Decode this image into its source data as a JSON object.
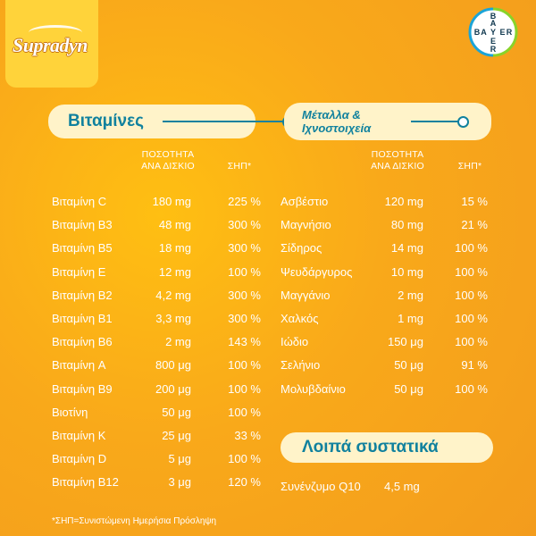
{
  "brand": {
    "name": "Supradyn"
  },
  "bayer": {
    "letters_vertical": "BAYER",
    "letters_horizontal": "BAYER"
  },
  "vitamins": {
    "title": "Βιταμίνες",
    "header_amount_line1": "ΠΟΣΟΤΗΤΑ",
    "header_amount_line2": "ΑΝΑ ΔΙΣΚΙΟ",
    "header_pct": "ΣΗΠ*",
    "items": [
      {
        "name": "Βιταμίνη C",
        "amount": "180 mg",
        "pct": "225 %"
      },
      {
        "name": "Βιταμίνη B3",
        "amount": "48 mg",
        "pct": "300 %"
      },
      {
        "name": "Βιταμίνη B5",
        "amount": "18 mg",
        "pct": "300 %"
      },
      {
        "name": "Βιταμίνη E",
        "amount": "12 mg",
        "pct": "100 %"
      },
      {
        "name": "Βιταμίνη B2",
        "amount": "4,2 mg",
        "pct": "300 %"
      },
      {
        "name": "Βιταμίνη B1",
        "amount": "3,3 mg",
        "pct": "300 %"
      },
      {
        "name": "Βιταμίνη B6",
        "amount": "2 mg",
        "pct": "143 %"
      },
      {
        "name": "Βιταμίνη A",
        "amount": "800 μg",
        "pct": "100 %"
      },
      {
        "name": "Βιταμίνη B9",
        "amount": "200 μg",
        "pct": "100 %"
      },
      {
        "name": "Βιοτίνη",
        "amount": "50 μg",
        "pct": "100 %"
      },
      {
        "name": "Βιταμίνη K",
        "amount": "25 μg",
        "pct": "33 %"
      },
      {
        "name": "Βιταμίνη D",
        "amount": "5 μg",
        "pct": "100 %"
      },
      {
        "name": "Βιταμίνη B12",
        "amount": "3 μg",
        "pct": "120 %"
      }
    ]
  },
  "minerals": {
    "title_line1": "Μέταλλα &",
    "title_line2": "Ιχνοστοιχεία",
    "header_amount_line1": "ΠΟΣΟΤΗΤΑ",
    "header_amount_line2": "ΑΝΑ ΔΙΣΚΙΟ",
    "header_pct": "ΣΗΠ*",
    "items": [
      {
        "name": "Ασβέστιο",
        "amount": "120 mg",
        "pct": "15 %"
      },
      {
        "name": "Μαγνήσιο",
        "amount": "80 mg",
        "pct": "21 %"
      },
      {
        "name": "Σίδηρος",
        "amount": "14 mg",
        "pct": "100 %"
      },
      {
        "name": "Ψευδάργυρος",
        "amount": "10 mg",
        "pct": "100 %"
      },
      {
        "name": "Μαγγάνιο",
        "amount": "2 mg",
        "pct": "100 %"
      },
      {
        "name": "Χαλκός",
        "amount": "1 mg",
        "pct": "100 %"
      },
      {
        "name": "Ιώδιο",
        "amount": "150 μg",
        "pct": "100 %"
      },
      {
        "name": "Σελήνιο",
        "amount": "50 μg",
        "pct": "91 %"
      },
      {
        "name": "Μολυβδαίνιο",
        "amount": "50 μg",
        "pct": "100 %"
      }
    ]
  },
  "other": {
    "title": "Λοιπά συστατικά",
    "items": [
      {
        "name": "Συνένζυμο Q10",
        "amount": "4,5 mg"
      }
    ]
  },
  "footnote": "*ΣΗΠ=Συνιστώμενη Ημερήσια Πρόσληψη",
  "colors": {
    "background": "#f9a91a",
    "pill": "#fff3c9",
    "accent": "#10819e",
    "bayer_blue": "#10384f",
    "bayer_green": "#89d329"
  }
}
